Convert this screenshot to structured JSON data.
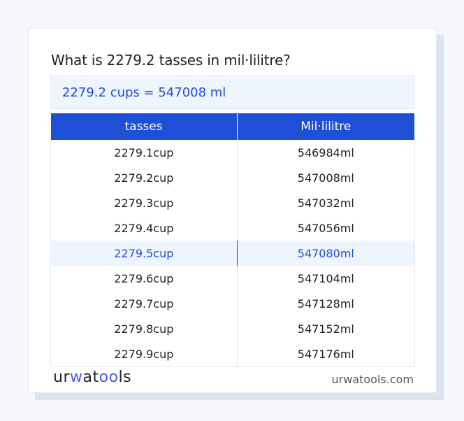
{
  "title": "What is 2279.2 tasses in mil·lilitre?",
  "result": "2279.2 cups = 547008 ml",
  "table": {
    "headers": [
      "tasses",
      "Mil·lilitre"
    ],
    "rows": [
      [
        "2279.1cup",
        "546984ml"
      ],
      [
        "2279.2cup",
        "547008ml"
      ],
      [
        "2279.3cup",
        "547032ml"
      ],
      [
        "2279.4cup",
        "547056ml"
      ],
      [
        "2279.5cup",
        "547080ml"
      ],
      [
        "2279.6cup",
        "547104ml"
      ],
      [
        "2279.7cup",
        "547128ml"
      ],
      [
        "2279.8cup",
        "547152ml"
      ],
      [
        "2279.9cup",
        "547176ml"
      ]
    ],
    "highlighted_row": 4
  },
  "footer": {
    "logo": "urwatools",
    "site": "urwatools.com"
  },
  "colors": {
    "accent": "#1d4fd7",
    "highlight_bg": "#eef5fe"
  }
}
